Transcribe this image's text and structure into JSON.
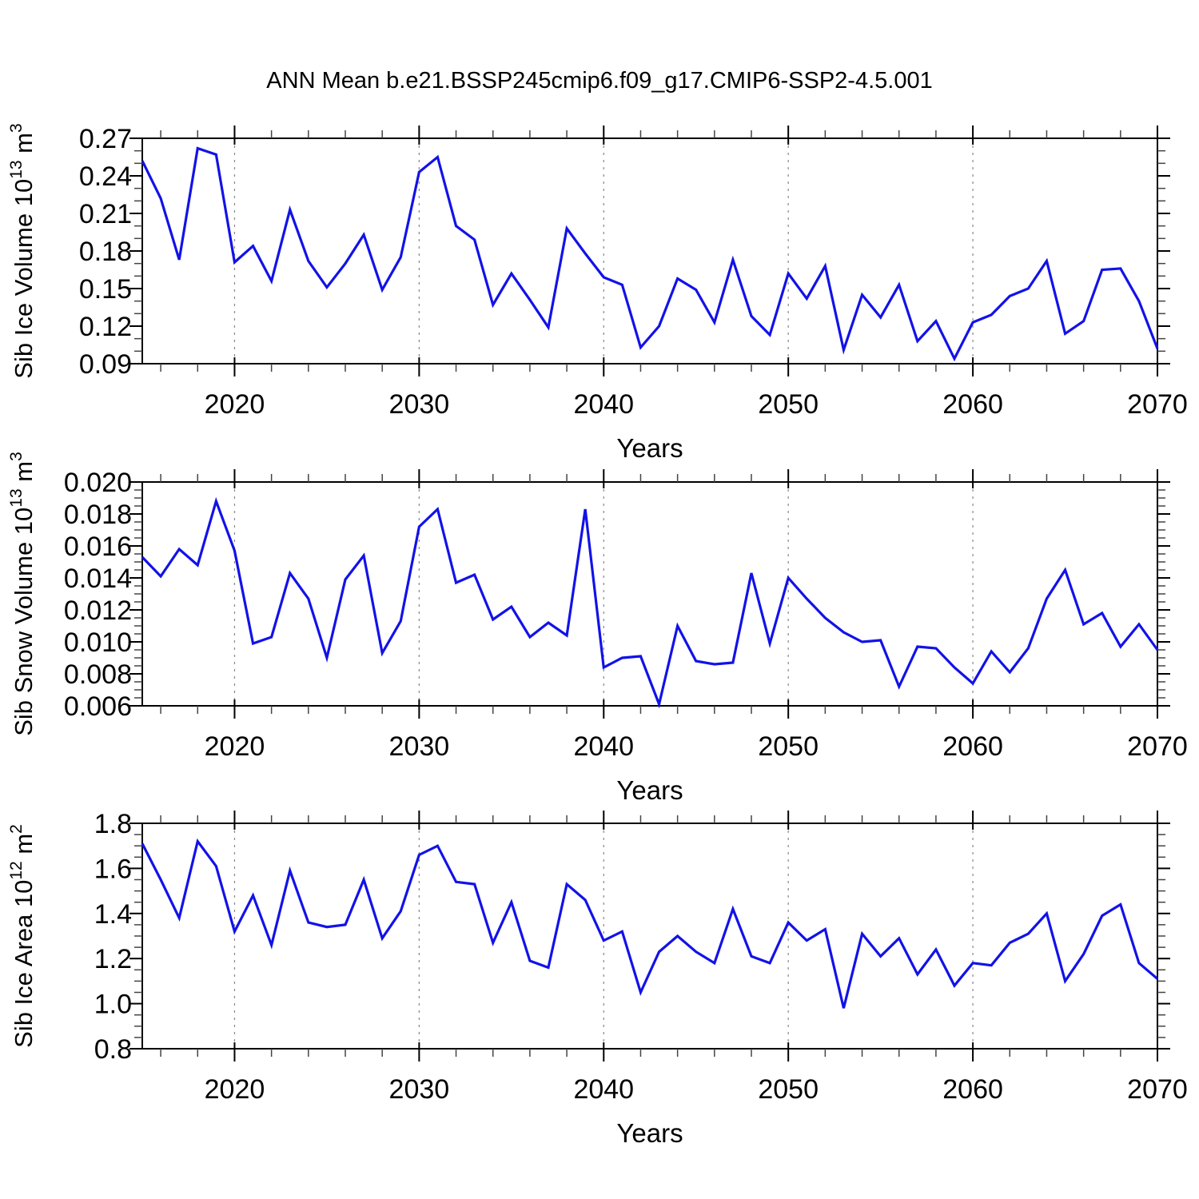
{
  "title": "ANN Mean b.e21.BSSP245cmip6.f09_g17.CMIP6-SSP2-4.5.001",
  "line_color": "#1212e8",
  "grid_color": "#888888",
  "frame_color": "#000000",
  "decade_gridlines": [
    2020,
    2030,
    2040,
    2050,
    2060
  ],
  "years": [
    2015,
    2016,
    2017,
    2018,
    2019,
    2020,
    2021,
    2022,
    2023,
    2024,
    2025,
    2026,
    2027,
    2028,
    2029,
    2030,
    2031,
    2032,
    2033,
    2034,
    2035,
    2036,
    2037,
    2038,
    2039,
    2040,
    2041,
    2042,
    2043,
    2044,
    2045,
    2046,
    2047,
    2048,
    2049,
    2050,
    2051,
    2052,
    2053,
    2054,
    2055,
    2056,
    2057,
    2058,
    2059,
    2060,
    2061,
    2062,
    2063,
    2064,
    2065,
    2066,
    2067,
    2068,
    2069,
    2070
  ],
  "chart_data": [
    {
      "type": "line",
      "name": "sib-ice-volume",
      "title": "",
      "xlabel": "Years",
      "ylabel_text": "Sib Ice Volume 10^13 m^3",
      "ylabel_parts": [
        [
          "t",
          "Sib Ice Volume 10"
        ],
        [
          "s",
          "13"
        ],
        [
          "t",
          " m"
        ],
        [
          "s",
          "3"
        ]
      ],
      "ylim": [
        0.09,
        0.27
      ],
      "ytick_labels": [
        "0.27",
        "0.24",
        "0.21",
        "0.18",
        "0.15",
        "0.12",
        "0.09"
      ],
      "ytick_step": 0.03,
      "yminor_step": 0.01,
      "xlim": [
        2015,
        2070
      ],
      "xtick_labels": [
        "2020",
        "2030",
        "2040",
        "2050",
        "2060",
        "2070"
      ],
      "xticks": [
        2020,
        2030,
        2040,
        2050,
        2060,
        2070
      ],
      "xminor_step": 2,
      "grid": "dashed-vertical-decades",
      "legend": "none",
      "values": [
        0.252,
        0.222,
        0.173,
        0.262,
        0.257,
        0.171,
        0.184,
        0.156,
        0.213,
        0.172,
        0.151,
        0.17,
        0.193,
        0.149,
        0.175,
        0.243,
        0.255,
        0.2,
        0.189,
        0.137,
        0.162,
        0.141,
        0.119,
        0.198,
        0.178,
        0.159,
        0.153,
        0.103,
        0.12,
        0.158,
        0.149,
        0.123,
        0.173,
        0.128,
        0.113,
        0.162,
        0.142,
        0.168,
        0.101,
        0.145,
        0.127,
        0.153,
        0.108,
        0.124,
        0.094,
        0.123,
        0.129,
        0.144,
        0.15,
        0.172,
        0.114,
        0.124,
        0.165,
        0.166,
        0.14,
        0.102
      ]
    },
    {
      "type": "line",
      "name": "sib-snow-volume",
      "title": "",
      "xlabel": "Years",
      "ylabel_text": "Sib Snow Volume 10^13 m^3",
      "ylabel_parts": [
        [
          "t",
          "Sib Snow Volume 10"
        ],
        [
          "s",
          "13"
        ],
        [
          "t",
          " m"
        ],
        [
          "s",
          "3"
        ]
      ],
      "ylim": [
        0.006,
        0.02
      ],
      "ytick_labels": [
        "0.020",
        "0.018",
        "0.016",
        "0.014",
        "0.012",
        "0.010",
        "0.008",
        "0.006"
      ],
      "ytick_step": 0.002,
      "yminor_step": 0.0005,
      "xlim": [
        2015,
        2070
      ],
      "xtick_labels": [
        "2020",
        "2030",
        "2040",
        "2050",
        "2060",
        "2070"
      ],
      "xticks": [
        2020,
        2030,
        2040,
        2050,
        2060,
        2070
      ],
      "xminor_step": 2,
      "grid": "dashed-vertical-decades",
      "legend": "none",
      "values": [
        0.0153,
        0.0141,
        0.0158,
        0.0148,
        0.0188,
        0.0157,
        0.0099,
        0.0103,
        0.0143,
        0.0127,
        0.009,
        0.0139,
        0.0154,
        0.0093,
        0.0113,
        0.0172,
        0.0183,
        0.0137,
        0.0142,
        0.0114,
        0.0122,
        0.0103,
        0.0112,
        0.0104,
        0.0183,
        0.0084,
        0.009,
        0.0091,
        0.0061,
        0.011,
        0.0088,
        0.0086,
        0.0087,
        0.0143,
        0.0099,
        0.014,
        0.0127,
        0.0115,
        0.0106,
        0.01,
        0.0101,
        0.0072,
        0.0097,
        0.0096,
        0.0084,
        0.0074,
        0.0094,
        0.0081,
        0.0096,
        0.0127,
        0.0145,
        0.0111,
        0.0118,
        0.0097,
        0.0111,
        0.0095
      ]
    },
    {
      "type": "line",
      "name": "sib-ice-area",
      "title": "",
      "xlabel": "Years",
      "ylabel_text": "Sib Ice Area 10^12 m^2",
      "ylabel_parts": [
        [
          "t",
          "Sib Ice Area 10"
        ],
        [
          "s",
          "12"
        ],
        [
          "t",
          " m"
        ],
        [
          "s",
          "2"
        ]
      ],
      "ylim": [
        0.8,
        1.8
      ],
      "ytick_labels": [
        "1.8",
        "1.6",
        "1.4",
        "1.2",
        "1.0",
        "0.8"
      ],
      "ytick_step": 0.2,
      "yminor_step": 0.05,
      "xlim": [
        2015,
        2070
      ],
      "xtick_labels": [
        "2020",
        "2030",
        "2040",
        "2050",
        "2060",
        "2070"
      ],
      "xticks": [
        2020,
        2030,
        2040,
        2050,
        2060,
        2070
      ],
      "xminor_step": 2,
      "grid": "dashed-vertical-decades",
      "legend": "none",
      "values": [
        1.71,
        1.55,
        1.38,
        1.72,
        1.61,
        1.32,
        1.48,
        1.26,
        1.59,
        1.36,
        1.34,
        1.35,
        1.55,
        1.29,
        1.41,
        1.66,
        1.7,
        1.54,
        1.53,
        1.27,
        1.45,
        1.19,
        1.16,
        1.53,
        1.46,
        1.28,
        1.32,
        1.05,
        1.23,
        1.3,
        1.23,
        1.18,
        1.42,
        1.21,
        1.18,
        1.36,
        1.28,
        1.33,
        0.98,
        1.31,
        1.21,
        1.29,
        1.13,
        1.24,
        1.08,
        1.18,
        1.17,
        1.27,
        1.31,
        1.4,
        1.1,
        1.22,
        1.39,
        1.44,
        1.18,
        1.11
      ]
    }
  ]
}
